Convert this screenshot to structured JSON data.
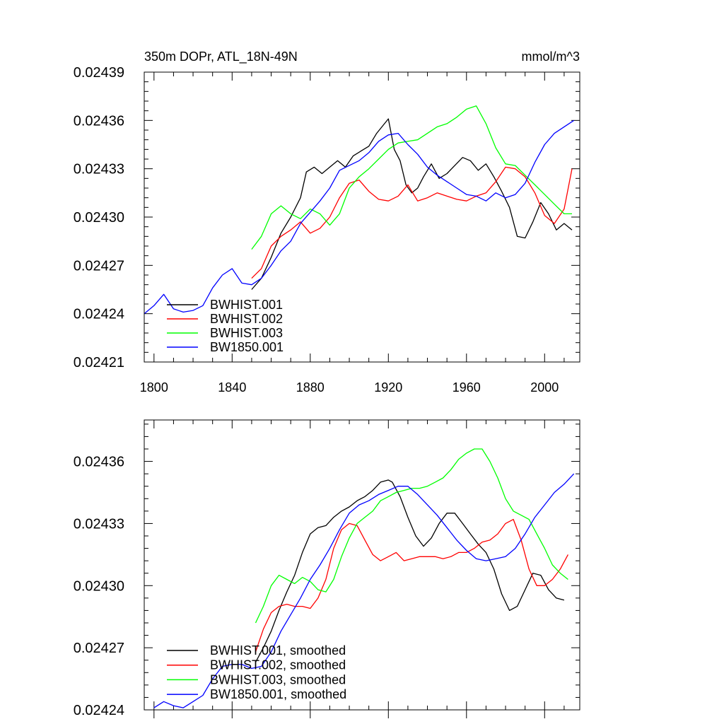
{
  "colors": {
    "BWHIST.001": "#000000",
    "BWHIST.002": "#ff0000",
    "BWHIST.003": "#00ff00",
    "BW1850.001": "#0000ff"
  },
  "chart_data": [
    {
      "type": "line",
      "title": "350m DOPr, ATL_18N-49N",
      "units": "mmol/m^3",
      "xlim": [
        1795,
        2018
      ],
      "ylim": [
        0.02421,
        0.02439
      ],
      "xticks": [
        1800,
        1840,
        1880,
        1920,
        1960,
        2000
      ],
      "yticks": [
        0.02421,
        0.02424,
        0.02427,
        0.0243,
        0.02433,
        0.02436,
        0.02439
      ],
      "ytick_labels": [
        "0.02421",
        "0.02424",
        "0.02427",
        "0.02430",
        "0.02433",
        "0.02436",
        "0.02439"
      ],
      "xtick_labels": [
        "1800",
        "1840",
        "1880",
        "1920",
        "1960",
        "2000"
      ],
      "legend": {
        "position": "bottom-left",
        "entries": [
          "BWHIST.001",
          "BWHIST.002",
          "BWHIST.003",
          "BW1850.001"
        ]
      },
      "series": [
        {
          "name": "BWHIST.001",
          "x": [
            1850,
            1855,
            1860,
            1865,
            1870,
            1875,
            1878,
            1882,
            1886,
            1890,
            1894,
            1898,
            1902,
            1906,
            1910,
            1914,
            1918,
            1920,
            1923,
            1926,
            1929,
            1932,
            1935,
            1938,
            1942,
            1946,
            1950,
            1954,
            1958,
            1962,
            1966,
            1970,
            1974,
            1978,
            1982,
            1986,
            1990,
            1994,
            1998,
            2002,
            2006,
            2010,
            2014
          ],
          "values": [
            0.024255,
            0.024262,
            0.024275,
            0.02429,
            0.0243,
            0.024312,
            0.024328,
            0.024331,
            0.024327,
            0.024331,
            0.024335,
            0.024331,
            0.024338,
            0.024341,
            0.024344,
            0.024352,
            0.024358,
            0.024361,
            0.024342,
            0.024335,
            0.02432,
            0.024315,
            0.024318,
            0.024325,
            0.024333,
            0.024324,
            0.024327,
            0.024332,
            0.024337,
            0.024335,
            0.024329,
            0.024333,
            0.024325,
            0.024316,
            0.024306,
            0.024288,
            0.024287,
            0.024297,
            0.024309,
            0.024302,
            0.024292,
            0.024296,
            0.024292
          ]
        },
        {
          "name": "BWHIST.002",
          "x": [
            1850,
            1855,
            1860,
            1865,
            1870,
            1875,
            1880,
            1885,
            1890,
            1895,
            1900,
            1905,
            1910,
            1915,
            1920,
            1925,
            1930,
            1935,
            1940,
            1945,
            1950,
            1955,
            1960,
            1965,
            1970,
            1975,
            1980,
            1985,
            1990,
            1995,
            2000,
            2005,
            2010,
            2014
          ],
          "values": [
            0.024262,
            0.024268,
            0.024282,
            0.024288,
            0.024292,
            0.024297,
            0.02429,
            0.024293,
            0.0243,
            0.024312,
            0.024321,
            0.024323,
            0.024316,
            0.024311,
            0.02431,
            0.024313,
            0.02432,
            0.02431,
            0.024312,
            0.024315,
            0.024313,
            0.024311,
            0.02431,
            0.024313,
            0.024315,
            0.024322,
            0.024331,
            0.02433,
            0.024325,
            0.024315,
            0.024301,
            0.024296,
            0.024305,
            0.02433
          ]
        },
        {
          "name": "BWHIST.003",
          "x": [
            1850,
            1855,
            1860,
            1865,
            1870,
            1875,
            1880,
            1885,
            1890,
            1895,
            1900,
            1905,
            1910,
            1915,
            1920,
            1925,
            1930,
            1935,
            1940,
            1945,
            1950,
            1955,
            1960,
            1965,
            1970,
            1975,
            1980,
            1985,
            1990,
            1995,
            2000,
            2005,
            2010,
            2014
          ],
          "values": [
            0.02428,
            0.024288,
            0.024302,
            0.024307,
            0.024302,
            0.024299,
            0.024305,
            0.024302,
            0.024295,
            0.024302,
            0.024318,
            0.024325,
            0.02433,
            0.024336,
            0.024342,
            0.024346,
            0.024347,
            0.024348,
            0.024352,
            0.024356,
            0.024358,
            0.024362,
            0.024367,
            0.024369,
            0.024358,
            0.024343,
            0.024333,
            0.024332,
            0.024326,
            0.02432,
            0.024314,
            0.024308,
            0.024302,
            0.024302
          ]
        },
        {
          "name": "BW1850.001",
          "x": [
            1795,
            1800,
            1805,
            1810,
            1815,
            1820,
            1825,
            1830,
            1835,
            1840,
            1845,
            1850,
            1855,
            1860,
            1865,
            1870,
            1875,
            1880,
            1885,
            1890,
            1895,
            1900,
            1905,
            1910,
            1915,
            1920,
            1925,
            1930,
            1935,
            1940,
            1945,
            1950,
            1955,
            1960,
            1965,
            1970,
            1975,
            1980,
            1985,
            1990,
            1995,
            2000,
            2005,
            2010,
            2015
          ],
          "values": [
            0.02424,
            0.024245,
            0.024252,
            0.024243,
            0.024241,
            0.024242,
            0.024245,
            0.024256,
            0.024264,
            0.024268,
            0.024259,
            0.024258,
            0.024262,
            0.02427,
            0.024279,
            0.024285,
            0.024296,
            0.024303,
            0.02431,
            0.024318,
            0.024329,
            0.024332,
            0.024335,
            0.02434,
            0.024347,
            0.024351,
            0.024352,
            0.024345,
            0.024339,
            0.024331,
            0.024326,
            0.024322,
            0.024318,
            0.024314,
            0.024313,
            0.02431,
            0.024315,
            0.024312,
            0.024314,
            0.024321,
            0.024334,
            0.024345,
            0.024352,
            0.024356,
            0.02436
          ]
        }
      ]
    },
    {
      "type": "line",
      "title": "",
      "xlim": [
        1795,
        2018
      ],
      "ylim": [
        0.02424,
        0.02438
      ],
      "yticks": [
        0.02424,
        0.02427,
        0.0243,
        0.02433,
        0.02436
      ],
      "ytick_labels": [
        "0.02424",
        "0.02427",
        "0.02430",
        "0.02433",
        "0.02436"
      ],
      "legend": {
        "position": "bottom-left",
        "entries": [
          "BWHIST.001, smoothed",
          "BWHIST.002, smoothed",
          "BWHIST.003, smoothed",
          "BW1850.001, smoothed"
        ]
      },
      "series": [
        {
          "name": "BWHIST.001, smoothed",
          "x": [
            1852,
            1856,
            1860,
            1864,
            1868,
            1872,
            1876,
            1880,
            1884,
            1888,
            1892,
            1896,
            1900,
            1904,
            1908,
            1912,
            1916,
            1920,
            1922,
            1926,
            1930,
            1934,
            1938,
            1942,
            1946,
            1950,
            1954,
            1958,
            1962,
            1966,
            1970,
            1974,
            1978,
            1982,
            1986,
            1990,
            1994,
            1998,
            2002,
            2006,
            2010
          ],
          "values": [
            0.024263,
            0.02427,
            0.024278,
            0.024288,
            0.024297,
            0.024305,
            0.024316,
            0.024325,
            0.024328,
            0.024329,
            0.024333,
            0.024336,
            0.024338,
            0.024341,
            0.024343,
            0.024346,
            0.02435,
            0.024351,
            0.02435,
            0.024343,
            0.024333,
            0.024324,
            0.024319,
            0.024323,
            0.02433,
            0.024335,
            0.024335,
            0.02433,
            0.024325,
            0.02432,
            0.024316,
            0.024308,
            0.024296,
            0.024288,
            0.02429,
            0.024298,
            0.024306,
            0.024305,
            0.024298,
            0.024294,
            0.024293
          ]
        },
        {
          "name": "BWHIST.002, smoothed",
          "x": [
            1852,
            1856,
            1860,
            1864,
            1868,
            1872,
            1876,
            1880,
            1884,
            1888,
            1892,
            1896,
            1900,
            1904,
            1908,
            1912,
            1916,
            1920,
            1924,
            1928,
            1932,
            1936,
            1940,
            1944,
            1948,
            1952,
            1956,
            1960,
            1964,
            1968,
            1972,
            1976,
            1980,
            1984,
            1988,
            1992,
            1996,
            2000,
            2004,
            2008,
            2012
          ],
          "values": [
            0.024268,
            0.024279,
            0.024287,
            0.02429,
            0.024291,
            0.02429,
            0.02429,
            0.024289,
            0.024294,
            0.024303,
            0.024318,
            0.024327,
            0.02433,
            0.024329,
            0.024322,
            0.024315,
            0.024312,
            0.024314,
            0.024316,
            0.024312,
            0.024313,
            0.024314,
            0.024314,
            0.024314,
            0.024313,
            0.024314,
            0.024316,
            0.024316,
            0.024318,
            0.024321,
            0.024322,
            0.024325,
            0.02433,
            0.024332,
            0.024322,
            0.024308,
            0.0243,
            0.0243,
            0.024303,
            0.024308,
            0.024315
          ]
        },
        {
          "name": "BWHIST.003, smoothed",
          "x": [
            1852,
            1856,
            1860,
            1864,
            1868,
            1872,
            1876,
            1880,
            1884,
            1888,
            1892,
            1896,
            1900,
            1904,
            1908,
            1912,
            1916,
            1920,
            1924,
            1928,
            1932,
            1936,
            1940,
            1944,
            1948,
            1952,
            1956,
            1960,
            1964,
            1968,
            1972,
            1976,
            1980,
            1984,
            1988,
            1992,
            1996,
            2000,
            2004,
            2008,
            2012
          ],
          "values": [
            0.024282,
            0.02429,
            0.0243,
            0.024305,
            0.024303,
            0.024301,
            0.024304,
            0.024302,
            0.024298,
            0.024297,
            0.024303,
            0.024314,
            0.024323,
            0.02433,
            0.024333,
            0.024336,
            0.024341,
            0.024343,
            0.024345,
            0.024346,
            0.024347,
            0.024347,
            0.024348,
            0.02435,
            0.024352,
            0.024356,
            0.024361,
            0.024364,
            0.024366,
            0.024366,
            0.02436,
            0.024352,
            0.024342,
            0.024336,
            0.024334,
            0.024332,
            0.024325,
            0.024318,
            0.02431,
            0.024306,
            0.024303
          ]
        },
        {
          "name": "BW1850.001, smoothed",
          "x": [
            1800,
            1805,
            1810,
            1815,
            1820,
            1825,
            1830,
            1835,
            1840,
            1845,
            1850,
            1855,
            1860,
            1865,
            1870,
            1875,
            1880,
            1885,
            1890,
            1895,
            1900,
            1905,
            1910,
            1915,
            1920,
            1925,
            1930,
            1935,
            1940,
            1945,
            1950,
            1955,
            1960,
            1965,
            1970,
            1975,
            1980,
            1985,
            1990,
            1995,
            2000,
            2005,
            2010,
            2015
          ],
          "values": [
            0.024241,
            0.024244,
            0.024242,
            0.024241,
            0.024244,
            0.024247,
            0.024255,
            0.024261,
            0.024262,
            0.024262,
            0.02426,
            0.024261,
            0.024268,
            0.024278,
            0.024286,
            0.024294,
            0.024303,
            0.02431,
            0.024318,
            0.024327,
            0.024335,
            0.024339,
            0.024341,
            0.024344,
            0.024346,
            0.024348,
            0.024348,
            0.024344,
            0.024339,
            0.024334,
            0.024328,
            0.024322,
            0.024317,
            0.024313,
            0.024312,
            0.024313,
            0.024314,
            0.024318,
            0.024325,
            0.024333,
            0.024339,
            0.024345,
            0.024349,
            0.024354
          ]
        }
      ]
    }
  ]
}
